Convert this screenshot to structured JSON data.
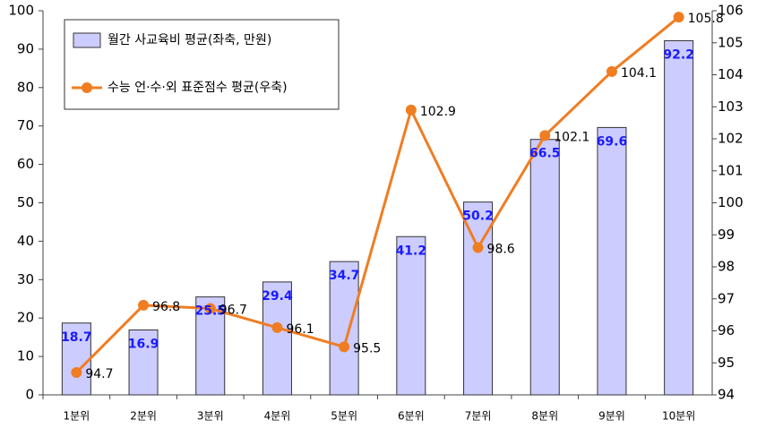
{
  "chart_data": {
    "type": "combo",
    "categories": [
      "1분위",
      "2분위",
      "3분위",
      "4분위",
      "5분위",
      "6분위",
      "7분위",
      "8분위",
      "9분위",
      "10분위"
    ],
    "series": [
      {
        "name": "월간 사교육비 평균(좌축, 만원)",
        "type": "bar",
        "color": "#ccccff",
        "values": [
          18.7,
          16.9,
          25.5,
          29.4,
          34.7,
          41.2,
          50.2,
          66.5,
          69.6,
          92.2
        ]
      },
      {
        "name": "수능 언·수·외 표준점수 평균(우축)",
        "type": "line",
        "axis": "y2",
        "color": "#f07d22",
        "values": [
          94.7,
          96.8,
          96.7,
          96.1,
          95.5,
          102.9,
          98.6,
          102.1,
          104.1,
          105.8
        ]
      }
    ],
    "ylim": [
      0,
      100
    ],
    "yticks": [
      0,
      10,
      20,
      30,
      40,
      50,
      60,
      70,
      80,
      90,
      100
    ],
    "y2lim": [
      94,
      106
    ],
    "y2ticks": [
      94,
      95,
      96,
      97,
      98,
      99,
      100,
      101,
      102,
      103,
      104,
      105,
      106
    ],
    "grid": false,
    "legend": "top-left"
  }
}
